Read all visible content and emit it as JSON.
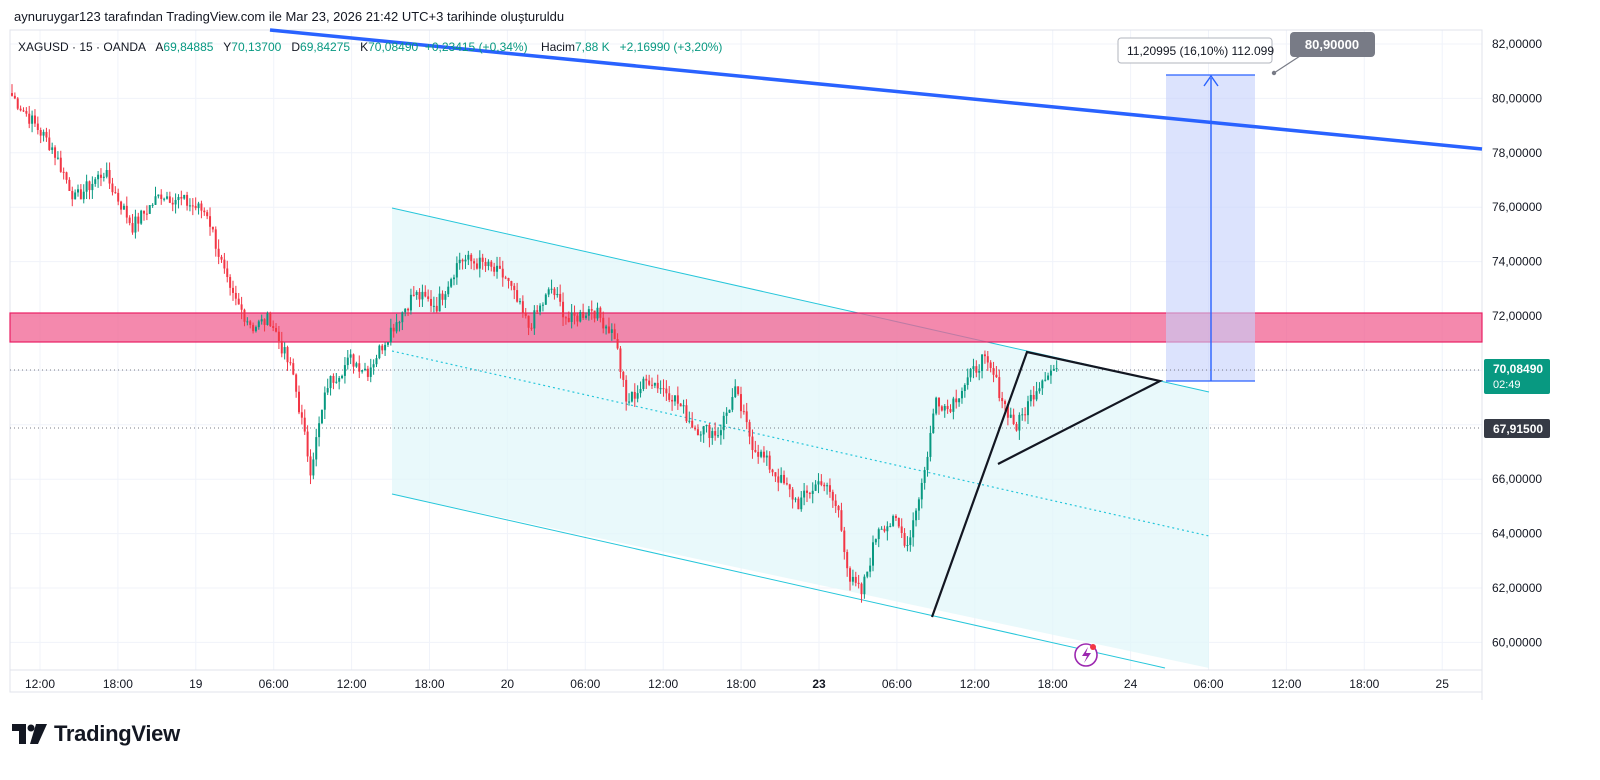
{
  "caption": "aynuruygar123 tarafından TradingView.com ile Mar 23, 2026 21:42 UTC+3 tarihinde oluşturuldu",
  "legend": {
    "symbol": "XAGUSD · 15 · OANDA",
    "open_label": "A",
    "open": "69,84885",
    "high_label": "Y",
    "high": "70,13700",
    "low_label": "D",
    "low": "69,84275",
    "close_label": "K",
    "close": "70,08490",
    "change": "+0,23415 (+0,34%)",
    "volume_label": "Hacim",
    "volume": "7,88 K",
    "volume_change": "+2,16990 (+3,20%)"
  },
  "brand": "TradingView",
  "colors": {
    "up": "#089981",
    "down": "#f23645",
    "grid": "#f0f3fa",
    "trendline": "#2962ff",
    "channel": "#00bcd4",
    "zone": "#f06292",
    "target": "#2962ff"
  },
  "chart_data": {
    "type": "candlestick",
    "price_axis": {
      "ticks": [
        "82,00000",
        "80,00000",
        "78,00000",
        "76,00000",
        "74,00000",
        "72,00000",
        "66,00000",
        "64,00000",
        "62,00000",
        "60,00000"
      ],
      "range": [
        59.0,
        83.0
      ]
    },
    "time_axis": {
      "ticks": [
        "12:00",
        "18:00",
        "19",
        "06:00",
        "12:00",
        "18:00",
        "20",
        "06:00",
        "12:00",
        "18:00",
        "23",
        "06:00",
        "12:00",
        "18:00",
        "24",
        "06:00",
        "12:00",
        "18:00",
        "25"
      ],
      "bold": [
        "23"
      ]
    },
    "price_labels": {
      "last": "70,08490",
      "countdown": "02:49",
      "reference": "67,91500",
      "target": "80,90000"
    },
    "measure_text": "11,20995 (16,10%) 112.099",
    "swing_points": [
      {
        "t": 0,
        "p": 80.1
      },
      {
        "t": 6,
        "p": 79.3
      },
      {
        "t": 14,
        "p": 78.2
      },
      {
        "t": 22,
        "p": 76.3
      },
      {
        "t": 32,
        "p": 77.3
      },
      {
        "t": 42,
        "p": 75.3
      },
      {
        "t": 52,
        "p": 76.5
      },
      {
        "t": 60,
        "p": 76.2
      },
      {
        "t": 68,
        "p": 75.8
      },
      {
        "t": 76,
        "p": 72.8
      },
      {
        "t": 84,
        "p": 71.6
      },
      {
        "t": 90,
        "p": 71.9
      },
      {
        "t": 98,
        "p": 69.8
      },
      {
        "t": 104,
        "p": 66.4
      },
      {
        "t": 110,
        "p": 69.5
      },
      {
        "t": 118,
        "p": 70.4
      },
      {
        "t": 124,
        "p": 70.0
      },
      {
        "t": 132,
        "p": 71.5
      },
      {
        "t": 140,
        "p": 72.8
      },
      {
        "t": 148,
        "p": 72.4
      },
      {
        "t": 156,
        "p": 74.1
      },
      {
        "t": 164,
        "p": 73.9
      },
      {
        "t": 172,
        "p": 73.4
      },
      {
        "t": 180,
        "p": 71.6
      },
      {
        "t": 188,
        "p": 73.0
      },
      {
        "t": 194,
        "p": 71.8
      },
      {
        "t": 202,
        "p": 72.3
      },
      {
        "t": 210,
        "p": 71.3
      },
      {
        "t": 214,
        "p": 68.8
      },
      {
        "t": 222,
        "p": 69.7
      },
      {
        "t": 230,
        "p": 69.1
      },
      {
        "t": 238,
        "p": 67.9
      },
      {
        "t": 246,
        "p": 67.7
      },
      {
        "t": 252,
        "p": 69.2
      },
      {
        "t": 258,
        "p": 67.3
      },
      {
        "t": 266,
        "p": 66.2
      },
      {
        "t": 274,
        "p": 65.1
      },
      {
        "t": 282,
        "p": 66.0
      },
      {
        "t": 288,
        "p": 64.8
      },
      {
        "t": 292,
        "p": 62.3
      },
      {
        "t": 296,
        "p": 61.8
      },
      {
        "t": 302,
        "p": 64.3
      },
      {
        "t": 308,
        "p": 64.4
      },
      {
        "t": 312,
        "p": 63.6
      },
      {
        "t": 318,
        "p": 66.3
      },
      {
        "t": 322,
        "p": 69.0
      },
      {
        "t": 326,
        "p": 68.6
      },
      {
        "t": 332,
        "p": 69.5
      },
      {
        "t": 338,
        "p": 70.4
      },
      {
        "t": 342,
        "p": 69.8
      },
      {
        "t": 346,
        "p": 68.7
      },
      {
        "t": 350,
        "p": 67.9
      },
      {
        "t": 356,
        "p": 69.2
      },
      {
        "t": 360,
        "p": 69.9
      },
      {
        "t": 364,
        "p": 70.08
      }
    ]
  }
}
